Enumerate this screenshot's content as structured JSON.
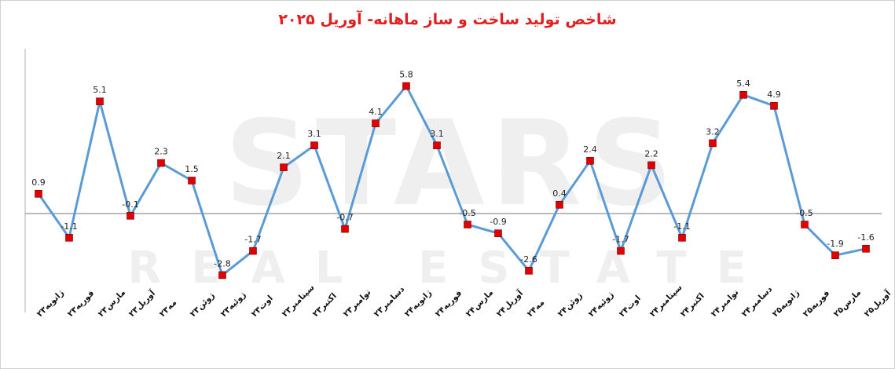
{
  "chart_data": {
    "type": "line",
    "title": "شاخص تولید ساخت و ساز ماهانه- آوریل ۲۰۲۵",
    "categories": [
      "ژانویه۲۳",
      "فوریه۲۳",
      "مارس۲۳",
      "آوریل۲۳",
      "مه۲۳",
      "ژوئن۲۳",
      "ژوئیه۲۳",
      "اوت۲۳",
      "سپتامبر۲۳",
      "اکتبر۲۳",
      "نوامبر۲۳",
      "دسامبر۲۳",
      "ژانویه۲۴",
      "فوریه۲۴",
      "مارس۲۴",
      "آوریل۲۴",
      "مه۲۴",
      "ژوئن۲۴",
      "ژوئیه۲۴",
      "اوت۲۴",
      "سپتامبر۲۴",
      "اکتبر۲۴",
      "نوامبر۲۴",
      "دسامبر۲۴",
      "ژانویه۲۵",
      "فوریه۲۵",
      "مارس۲۵",
      "آوریل۲۵"
    ],
    "series": [
      {
        "values": [
          0.9,
          -1.1,
          5.1,
          -0.1,
          2.3,
          1.5,
          -2.8,
          -1.7,
          2.1,
          3.1,
          -0.7,
          4.1,
          5.8,
          3.1,
          -0.5,
          -0.9,
          -2.6,
          0.4,
          2.4,
          -1.7,
          2.2,
          -1.1,
          3.2,
          5.4,
          4.9,
          -0.5,
          -1.9,
          -1.6
        ]
      }
    ],
    "data_labels": [
      "0.9",
      "-1.1",
      "5.1",
      "-0.1",
      "2.3",
      "1.5",
      "-2.8",
      "-1.7",
      "2.1",
      "3.1",
      "-0.7",
      "4.1",
      "5.8",
      "3.1",
      "-0.5",
      "-0.9",
      "-2.6",
      "0.4",
      "2.4",
      "-1.7",
      "2.2",
      "-1.1",
      "3.2",
      "5.4",
      "4.9",
      "-0.5",
      "-1.9",
      "-1.6"
    ],
    "xlabel": "",
    "ylabel": "",
    "ylim": [
      -4.5,
      7.5
    ],
    "zero_line": true,
    "grid": false,
    "legend": "none",
    "colors": {
      "line": "#5b9bd5",
      "marker": "#e00000",
      "title": "#e02020",
      "axis": "#777777"
    }
  },
  "watermark": {
    "line1": "STARS",
    "line2": "REAL ESTATE"
  }
}
